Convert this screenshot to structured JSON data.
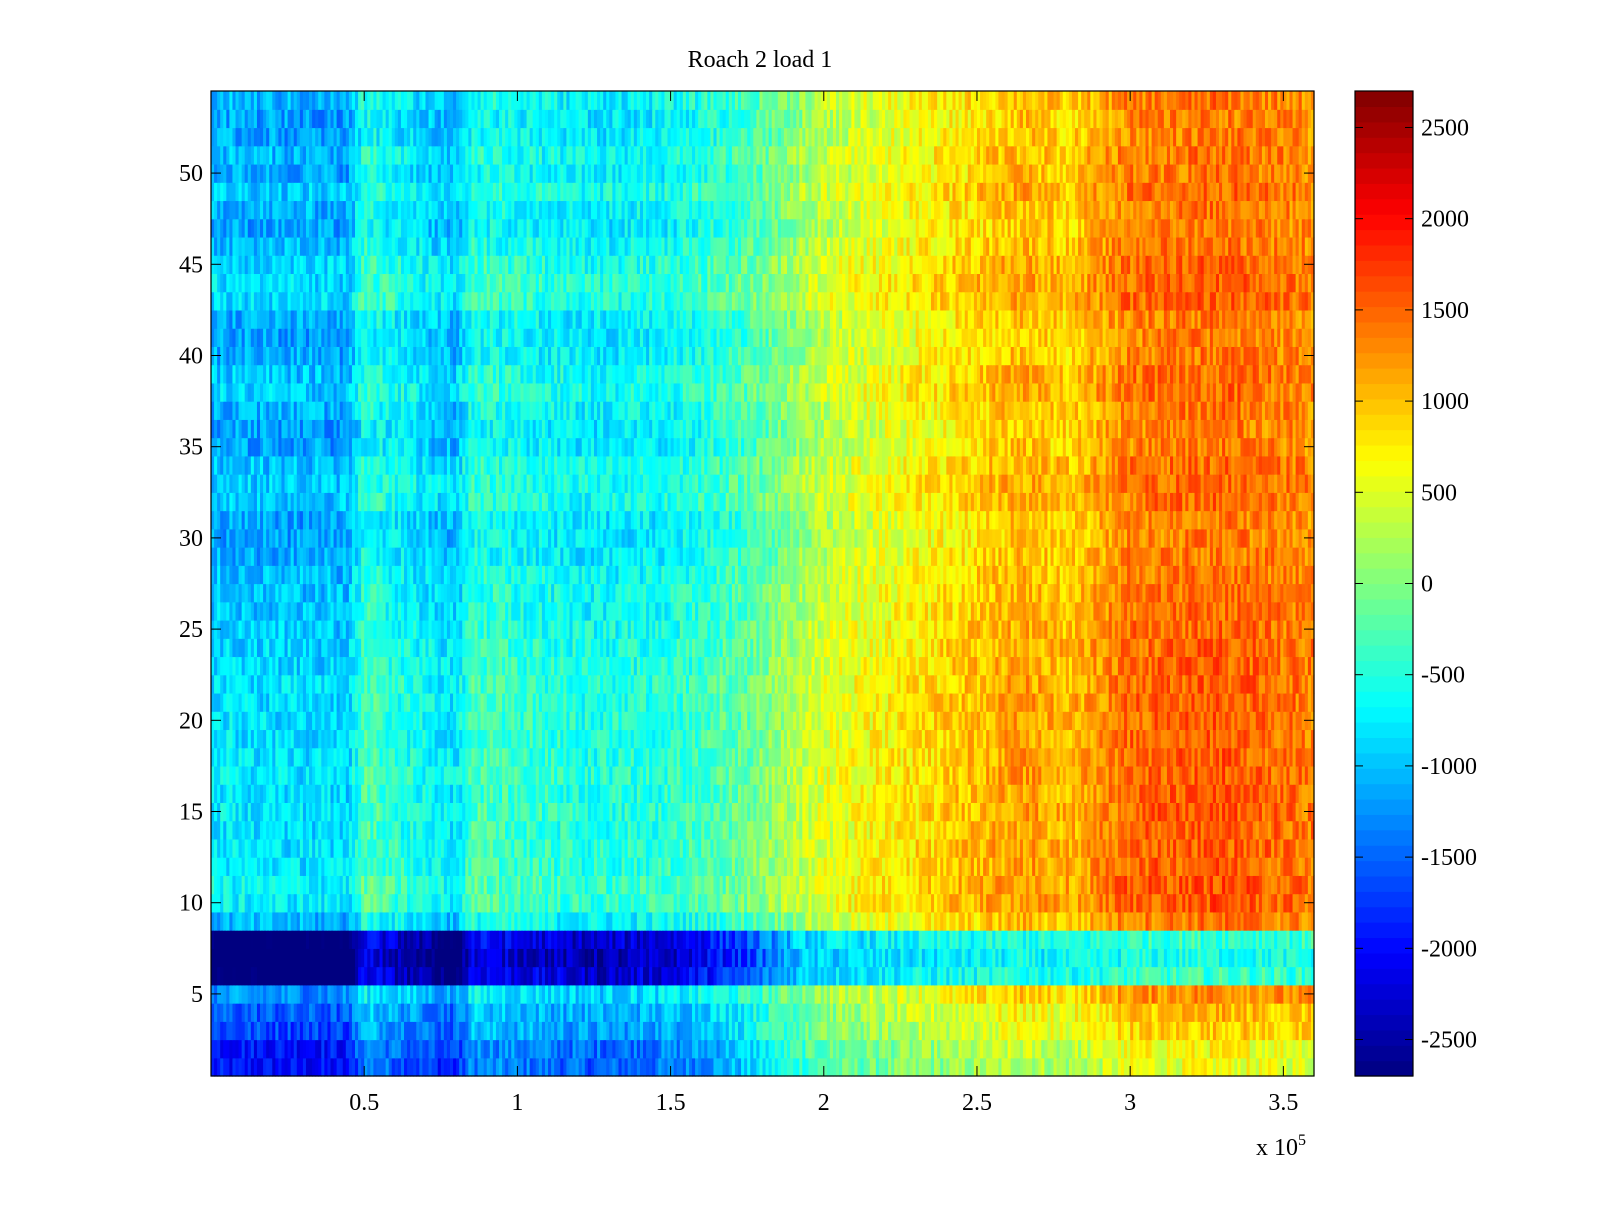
{
  "chart_data": {
    "type": "heatmap",
    "title": "Roach 2 load 1",
    "xlabel": "",
    "ylabel": "",
    "x_exponent_label": "x 10",
    "x_exponent": "5",
    "xlim": [
      0,
      360000
    ],
    "ylim": [
      0.5,
      54.5
    ],
    "x_ticks": [
      50000,
      100000,
      150000,
      200000,
      250000,
      300000,
      350000
    ],
    "x_tick_labels": [
      "0.5",
      "1",
      "1.5",
      "2",
      "2.5",
      "3",
      "3.5"
    ],
    "y_ticks": [
      5,
      10,
      15,
      20,
      25,
      30,
      35,
      40,
      45,
      50
    ],
    "y_tick_labels": [
      "5",
      "10",
      "15",
      "20",
      "25",
      "30",
      "35",
      "40",
      "45",
      "50"
    ],
    "colormap": "jet",
    "color_limits": [
      -2700,
      2700
    ],
    "colorbar_ticks": [
      2500,
      2000,
      1500,
      1000,
      500,
      0,
      -500,
      -1000,
      -1500,
      -2000,
      -2500
    ],
    "colorbar_tick_labels": [
      "2500",
      "2000",
      "1500",
      "1000",
      "500",
      "0",
      "-500",
      "-1000",
      "-1500",
      "-2000",
      "-2500"
    ],
    "rows": 54,
    "columns": 360,
    "trend_by_x": {
      "x": [
        0,
        45000,
        50000,
        80000,
        85000,
        125000,
        150000,
        175000,
        200000,
        245000,
        265000,
        280000,
        300000,
        330000,
        360000
      ],
      "value": [
        -1250,
        -1300,
        -700,
        -1200,
        -700,
        -900,
        -800,
        -450,
        200,
        700,
        950,
        800,
        1250,
        1350,
        1200
      ]
    },
    "row_offsets": {
      "1": -400,
      "2": -350,
      "3": -200,
      "4": -150,
      "5": 0,
      "6": -900,
      "7": -1000,
      "8": -900,
      "9": 200,
      "10": 550,
      "11": 600,
      "12": 500,
      "13": 500,
      "14": 450,
      "15": 500,
      "16": 450,
      "17": 500,
      "18": 450,
      "19": 450,
      "20": 450,
      "21": 450,
      "22": 450,
      "23": 400,
      "24": 400,
      "25": 350,
      "26": 300,
      "27": 300,
      "28": 250,
      "29": 150,
      "30": 100,
      "31": 100,
      "32": 350,
      "33": 350,
      "34": 300,
      "35": 100,
      "36": 100,
      "37": 200,
      "38": 350,
      "39": 300,
      "40": 150,
      "41": 100,
      "42": 150,
      "43": 450,
      "44": 450,
      "45": 400,
      "46": 250,
      "47": 100,
      "48": 200,
      "49": 350,
      "50": 150,
      "51": 250,
      "52": 100,
      "53": 100,
      "54": 200
    }
  }
}
